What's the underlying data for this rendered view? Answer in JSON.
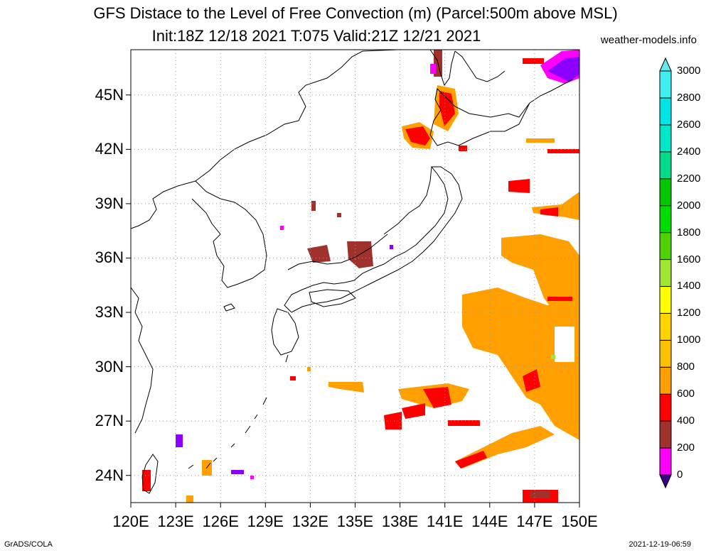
{
  "title": "GFS Distace to the Level of Free Convection (m) (Parcel:500m above MSL)",
  "subtitle": "Init:18Z 12/18 2021 T:075 Valid:21Z 12/21 2021",
  "site": "weather-models.info",
  "credit": "GrADS/COLA",
  "timestamp": "2021-12-19-06:59",
  "map": {
    "lon_range": [
      120,
      150
    ],
    "lat_range": [
      22.5,
      47.5
    ],
    "lat_labels": [
      "45N",
      "42N",
      "39N",
      "36N",
      "33N",
      "30N",
      "27N",
      "24N"
    ],
    "lon_labels": [
      "120E",
      "123E",
      "126E",
      "129E",
      "132E",
      "135E",
      "138E",
      "141E",
      "144E",
      "147E",
      "150E"
    ]
  },
  "colorbar": {
    "labels": [
      "3000",
      "2800",
      "2600",
      "2400",
      "2200",
      "2000",
      "1800",
      "1600",
      "1400",
      "1200",
      "1000",
      "800",
      "600",
      "400",
      "200",
      "0"
    ],
    "colors": [
      "#8b00ff",
      "#ff00ff",
      "#a0322d",
      "#ff0000",
      "#ffa000",
      "#ffc000",
      "#ffd200",
      "#ffff00",
      "#a0e632",
      "#50d200",
      "#00dc00",
      "#00c800",
      "#00dc8c",
      "#00e6c8",
      "#00e6e6",
      "#40f0f0",
      "#7df5f5"
    ],
    "lowest_color": "#3c0082",
    "highest_color": "#66e8e8"
  }
}
